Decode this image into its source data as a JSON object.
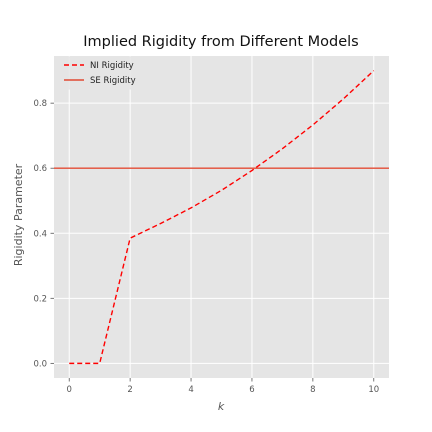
{
  "chart_data": {
    "type": "line",
    "title": "Implied Rigidity from Different Models",
    "xlabel": "k",
    "ylabel": "Rigidity Parameter",
    "xlim": [
      -0.5,
      10.5
    ],
    "ylim": [
      -0.045,
      0.945
    ],
    "x_ticks": [
      0,
      2,
      4,
      6,
      8,
      10
    ],
    "y_ticks": [
      0.0,
      0.2,
      0.4,
      0.6,
      0.8
    ],
    "grid": true,
    "legend_position": "top-left",
    "series": [
      {
        "name": "NI Rigidity",
        "color": "#ff0000",
        "style": "dashed",
        "x": [
          0,
          1,
          2,
          3,
          4,
          5,
          6,
          7,
          8,
          9,
          10
        ],
        "y": [
          0.0,
          0.0,
          0.385,
          0.43,
          0.478,
          0.532,
          0.593,
          0.66,
          0.733,
          0.813,
          0.9
        ]
      },
      {
        "name": "SE Rigidity",
        "color": "#e24a33",
        "style": "solid",
        "type": "hline",
        "y": 0.6
      }
    ]
  }
}
